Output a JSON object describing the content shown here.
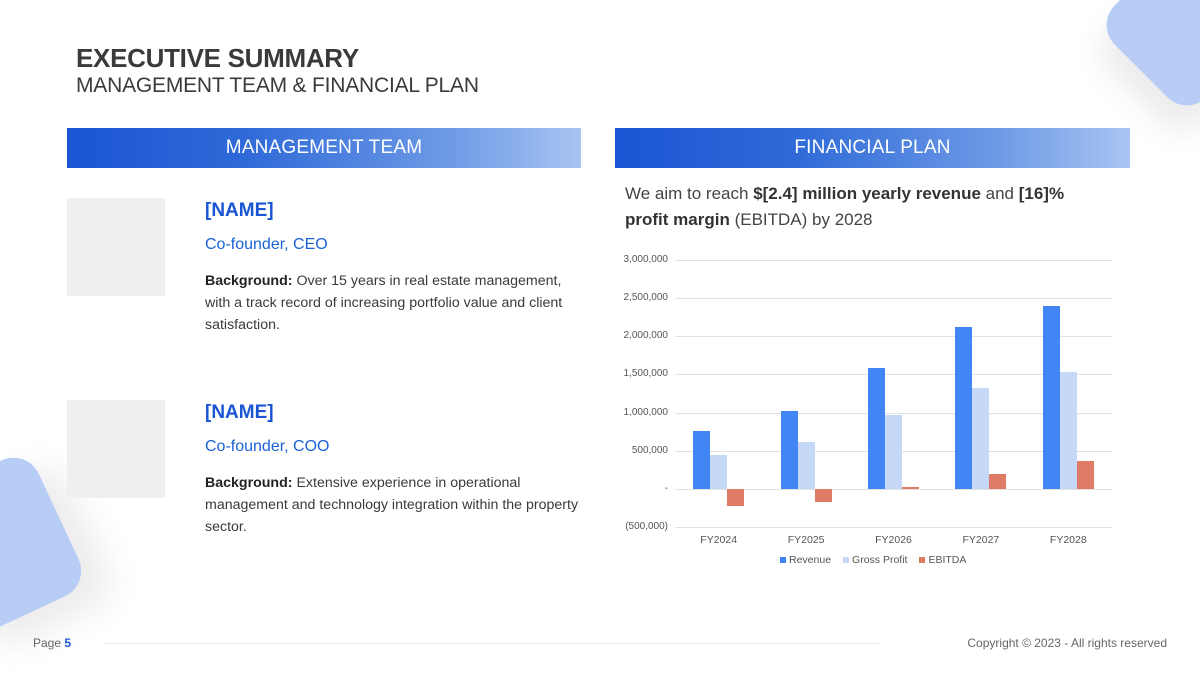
{
  "header": {
    "title": "EXECUTIVE SUMMARY",
    "subtitle": "MANAGEMENT TEAM & FINANCIAL PLAN"
  },
  "management": {
    "heading": "MANAGEMENT TEAM",
    "members": [
      {
        "name": "[NAME]",
        "role": "Co-founder, CEO",
        "background_label": "Background:",
        "background_text": " Over 15 years in real estate management, with a track record of increasing portfolio value and client satisfaction."
      },
      {
        "name": "[NAME]",
        "role": "Co-founder, COO",
        "background_label": "Background:",
        "background_text": " Extensive experience in operational management and technology integration within the property sector."
      }
    ]
  },
  "financial": {
    "heading": "FINANCIAL PLAN",
    "summary": {
      "part1": "We aim to reach ",
      "bold1": "$[2.4] million yearly revenue",
      "part2": " and ",
      "bold2": "[16]% profit margin",
      "part3": " (EBITDA) by 2028"
    }
  },
  "chart_data": {
    "type": "bar",
    "title": "",
    "xlabel": "",
    "ylabel": "",
    "categories": [
      "FY2024",
      "FY2025",
      "FY2026",
      "FY2027",
      "FY2028"
    ],
    "series": [
      {
        "name": "Revenue",
        "color": "#4285f4",
        "values": [
          755000,
          1020000,
          1580000,
          2120000,
          2400000
        ]
      },
      {
        "name": "Gross Profit",
        "color": "#c6d8f7",
        "values": [
          440000,
          620000,
          970000,
          1320000,
          1530000
        ]
      },
      {
        "name": "EBITDA",
        "color": "#e07b65",
        "values": [
          -225000,
          -170000,
          20000,
          200000,
          370000
        ]
      }
    ],
    "ylim": [
      -500000,
      3000000
    ],
    "yticks": [
      {
        "value": 3000000,
        "label": "3,000,000"
      },
      {
        "value": 2500000,
        "label": "2,500,000"
      },
      {
        "value": 2000000,
        "label": "2,000,000"
      },
      {
        "value": 1500000,
        "label": "1,500,000"
      },
      {
        "value": 1000000,
        "label": "1,000,000"
      },
      {
        "value": 500000,
        "label": "500,000"
      },
      {
        "value": 0,
        "label": "-"
      },
      {
        "value": -500000,
        "label": "(500,000)"
      }
    ],
    "grid": true,
    "legend_position": "bottom"
  },
  "footer": {
    "page_label": "Page ",
    "page_number": "5",
    "copyright": "Copyright © 2023 - All rights reserved"
  },
  "colors": {
    "accent": "#1a55d4",
    "decoration": "#b7cdf6"
  }
}
